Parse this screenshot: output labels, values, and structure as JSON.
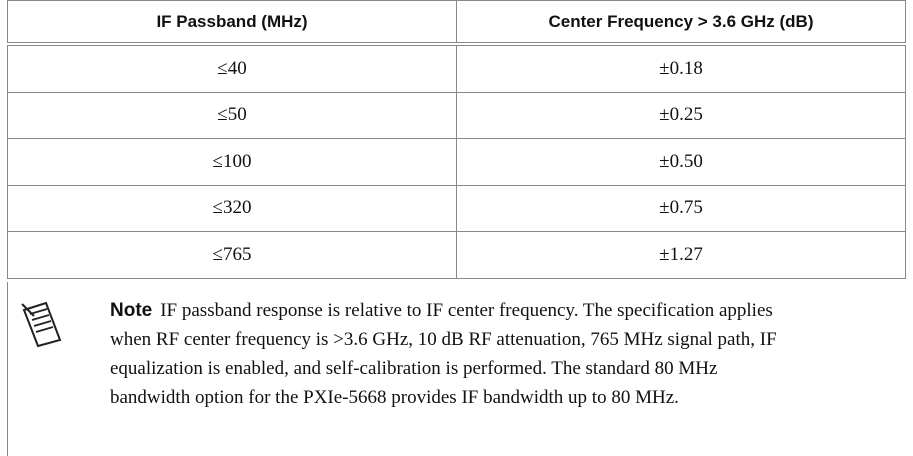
{
  "table": {
    "header": [
      "IF Passband (MHz)",
      "Center Frequency > 3.6 GHz (dB)"
    ],
    "rows": [
      [
        "≤40",
        "±0.18"
      ],
      [
        "≤50",
        "±0.25"
      ],
      [
        "≤100",
        "±0.50"
      ],
      [
        "≤320",
        "±0.75"
      ],
      [
        "≤765",
        "±1.27"
      ]
    ]
  },
  "note": {
    "label": "Note",
    "text": "IF passband response is relative to IF center frequency. The specification applies when RF center frequency is >3.6 GHz, 10 dB RF attenuation, 765 MHz signal path, IF equalization is enabled, and self-calibration is performed. The standard 80 MHz bandwidth option for the PXIe-5668 provides IF bandwidth up to 80 MHz."
  }
}
